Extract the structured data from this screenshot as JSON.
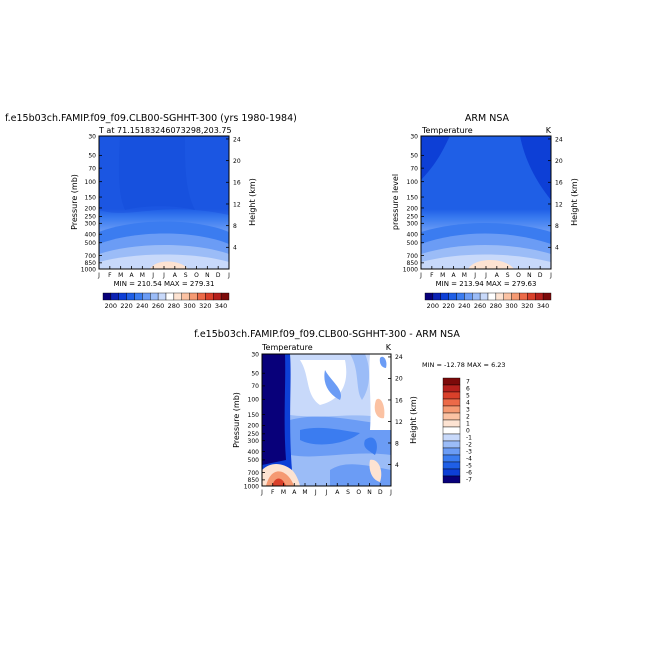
{
  "chart_data": [
    {
      "type": "heatmap",
      "title": "f.e15b03ch.FAMIP.f09_f09.CLB00-SGHHT-300 (yrs 1980-1984)",
      "subtitle": "T at 71.15183246073298,203.75",
      "xlabel": "",
      "ylabel": "Pressure (mb)",
      "ylabel_right": "Height (km)",
      "x_ticks": [
        "J",
        "F",
        "M",
        "A",
        "M",
        "J",
        "J",
        "A",
        "S",
        "O",
        "N",
        "D",
        "J"
      ],
      "y_ticks": [
        "30",
        "50",
        "70",
        "100",
        "150",
        "200",
        "250",
        "300",
        "400",
        "500",
        "700",
        "850",
        "1000"
      ],
      "y2_ticks": [
        "24",
        "20",
        "16",
        "12",
        "8",
        "4"
      ],
      "stats_text": "MIN = 210.54  MAX = 279.31",
      "colorbar_labels": [
        "200",
        "220",
        "240",
        "260",
        "280",
        "300",
        "320",
        "340"
      ],
      "variable": "T",
      "units": "K",
      "profile": [
        {
          "p": 1000,
          "t": 270
        },
        {
          "p": 850,
          "t": 262
        },
        {
          "p": 700,
          "t": 255
        },
        {
          "p": 500,
          "t": 240
        },
        {
          "p": 400,
          "t": 230
        },
        {
          "p": 300,
          "t": 222
        },
        {
          "p": 250,
          "t": 218
        },
        {
          "p": 200,
          "t": 216
        },
        {
          "p": 150,
          "t": 215
        },
        {
          "p": 100,
          "t": 214
        },
        {
          "p": 70,
          "t": 213
        },
        {
          "p": 50,
          "t": 213
        },
        {
          "p": 30,
          "t": 212
        }
      ]
    },
    {
      "type": "heatmap",
      "title": "ARM NSA",
      "left_label": "Temperature",
      "right_label": "K",
      "xlabel": "",
      "ylabel": "pressure level",
      "ylabel_right": "Height (km)",
      "x_ticks": [
        "J",
        "F",
        "M",
        "A",
        "M",
        "J",
        "J",
        "A",
        "S",
        "O",
        "N",
        "D",
        "J"
      ],
      "y_ticks": [
        "30",
        "50",
        "70",
        "100",
        "150",
        "200",
        "250",
        "300",
        "400",
        "500",
        "700",
        "850",
        "1000"
      ],
      "y2_ticks": [
        "24",
        "20",
        "16",
        "12",
        "8",
        "4"
      ],
      "stats_text": "MIN = 213.94  MAX = 279.63",
      "colorbar_labels": [
        "200",
        "220",
        "240",
        "260",
        "280",
        "300",
        "320",
        "340"
      ],
      "units": "K"
    },
    {
      "type": "heatmap",
      "title": "f.e15b03ch.FAMIP.f09_f09.CLB00-SGHHT-300 - ARM NSA",
      "left_label": "Temperature",
      "right_label": "K",
      "xlabel": "",
      "ylabel": "Pressure (mb)",
      "ylabel_right": "Height (km)",
      "x_ticks": [
        "J",
        "F",
        "M",
        "A",
        "M",
        "J",
        "J",
        "A",
        "S",
        "O",
        "N",
        "D",
        "J"
      ],
      "y_ticks": [
        "30",
        "50",
        "70",
        "100",
        "150",
        "200",
        "250",
        "300",
        "400",
        "500",
        "700",
        "850",
        "1000"
      ],
      "y2_ticks": [
        "24",
        "20",
        "16",
        "12",
        "8",
        "4"
      ],
      "stats_text": "MIN = -12.78  MAX =   6.23",
      "colorbar_labels": [
        "7",
        "6",
        "5",
        "4",
        "3",
        "2",
        "1",
        "0",
        "-1",
        "-2",
        "-3",
        "-4",
        "-5",
        "-6",
        "-7"
      ],
      "units": "K"
    }
  ],
  "colors": {
    "abs_scale": [
      "#08007a",
      "#0b22b4",
      "#0d3fd6",
      "#1f5fe6",
      "#3b7cf0",
      "#6b9cf5",
      "#9bbcf7",
      "#c8d9fa",
      "#ffffff",
      "#fde3d2",
      "#fbc2a3",
      "#f59a73",
      "#ec6a48",
      "#d9402a",
      "#b5201c",
      "#7c0a0a"
    ],
    "diff_scale": [
      "#7c0a0a",
      "#b5201c",
      "#d9402a",
      "#ec6a48",
      "#f59a73",
      "#fbc2a3",
      "#fde3d2",
      "#ffffff",
      "#c8d9fa",
      "#9bbcf7",
      "#6b9cf5",
      "#3b7cf0",
      "#1f5fe6",
      "#0d3fd6",
      "#08007a"
    ]
  }
}
